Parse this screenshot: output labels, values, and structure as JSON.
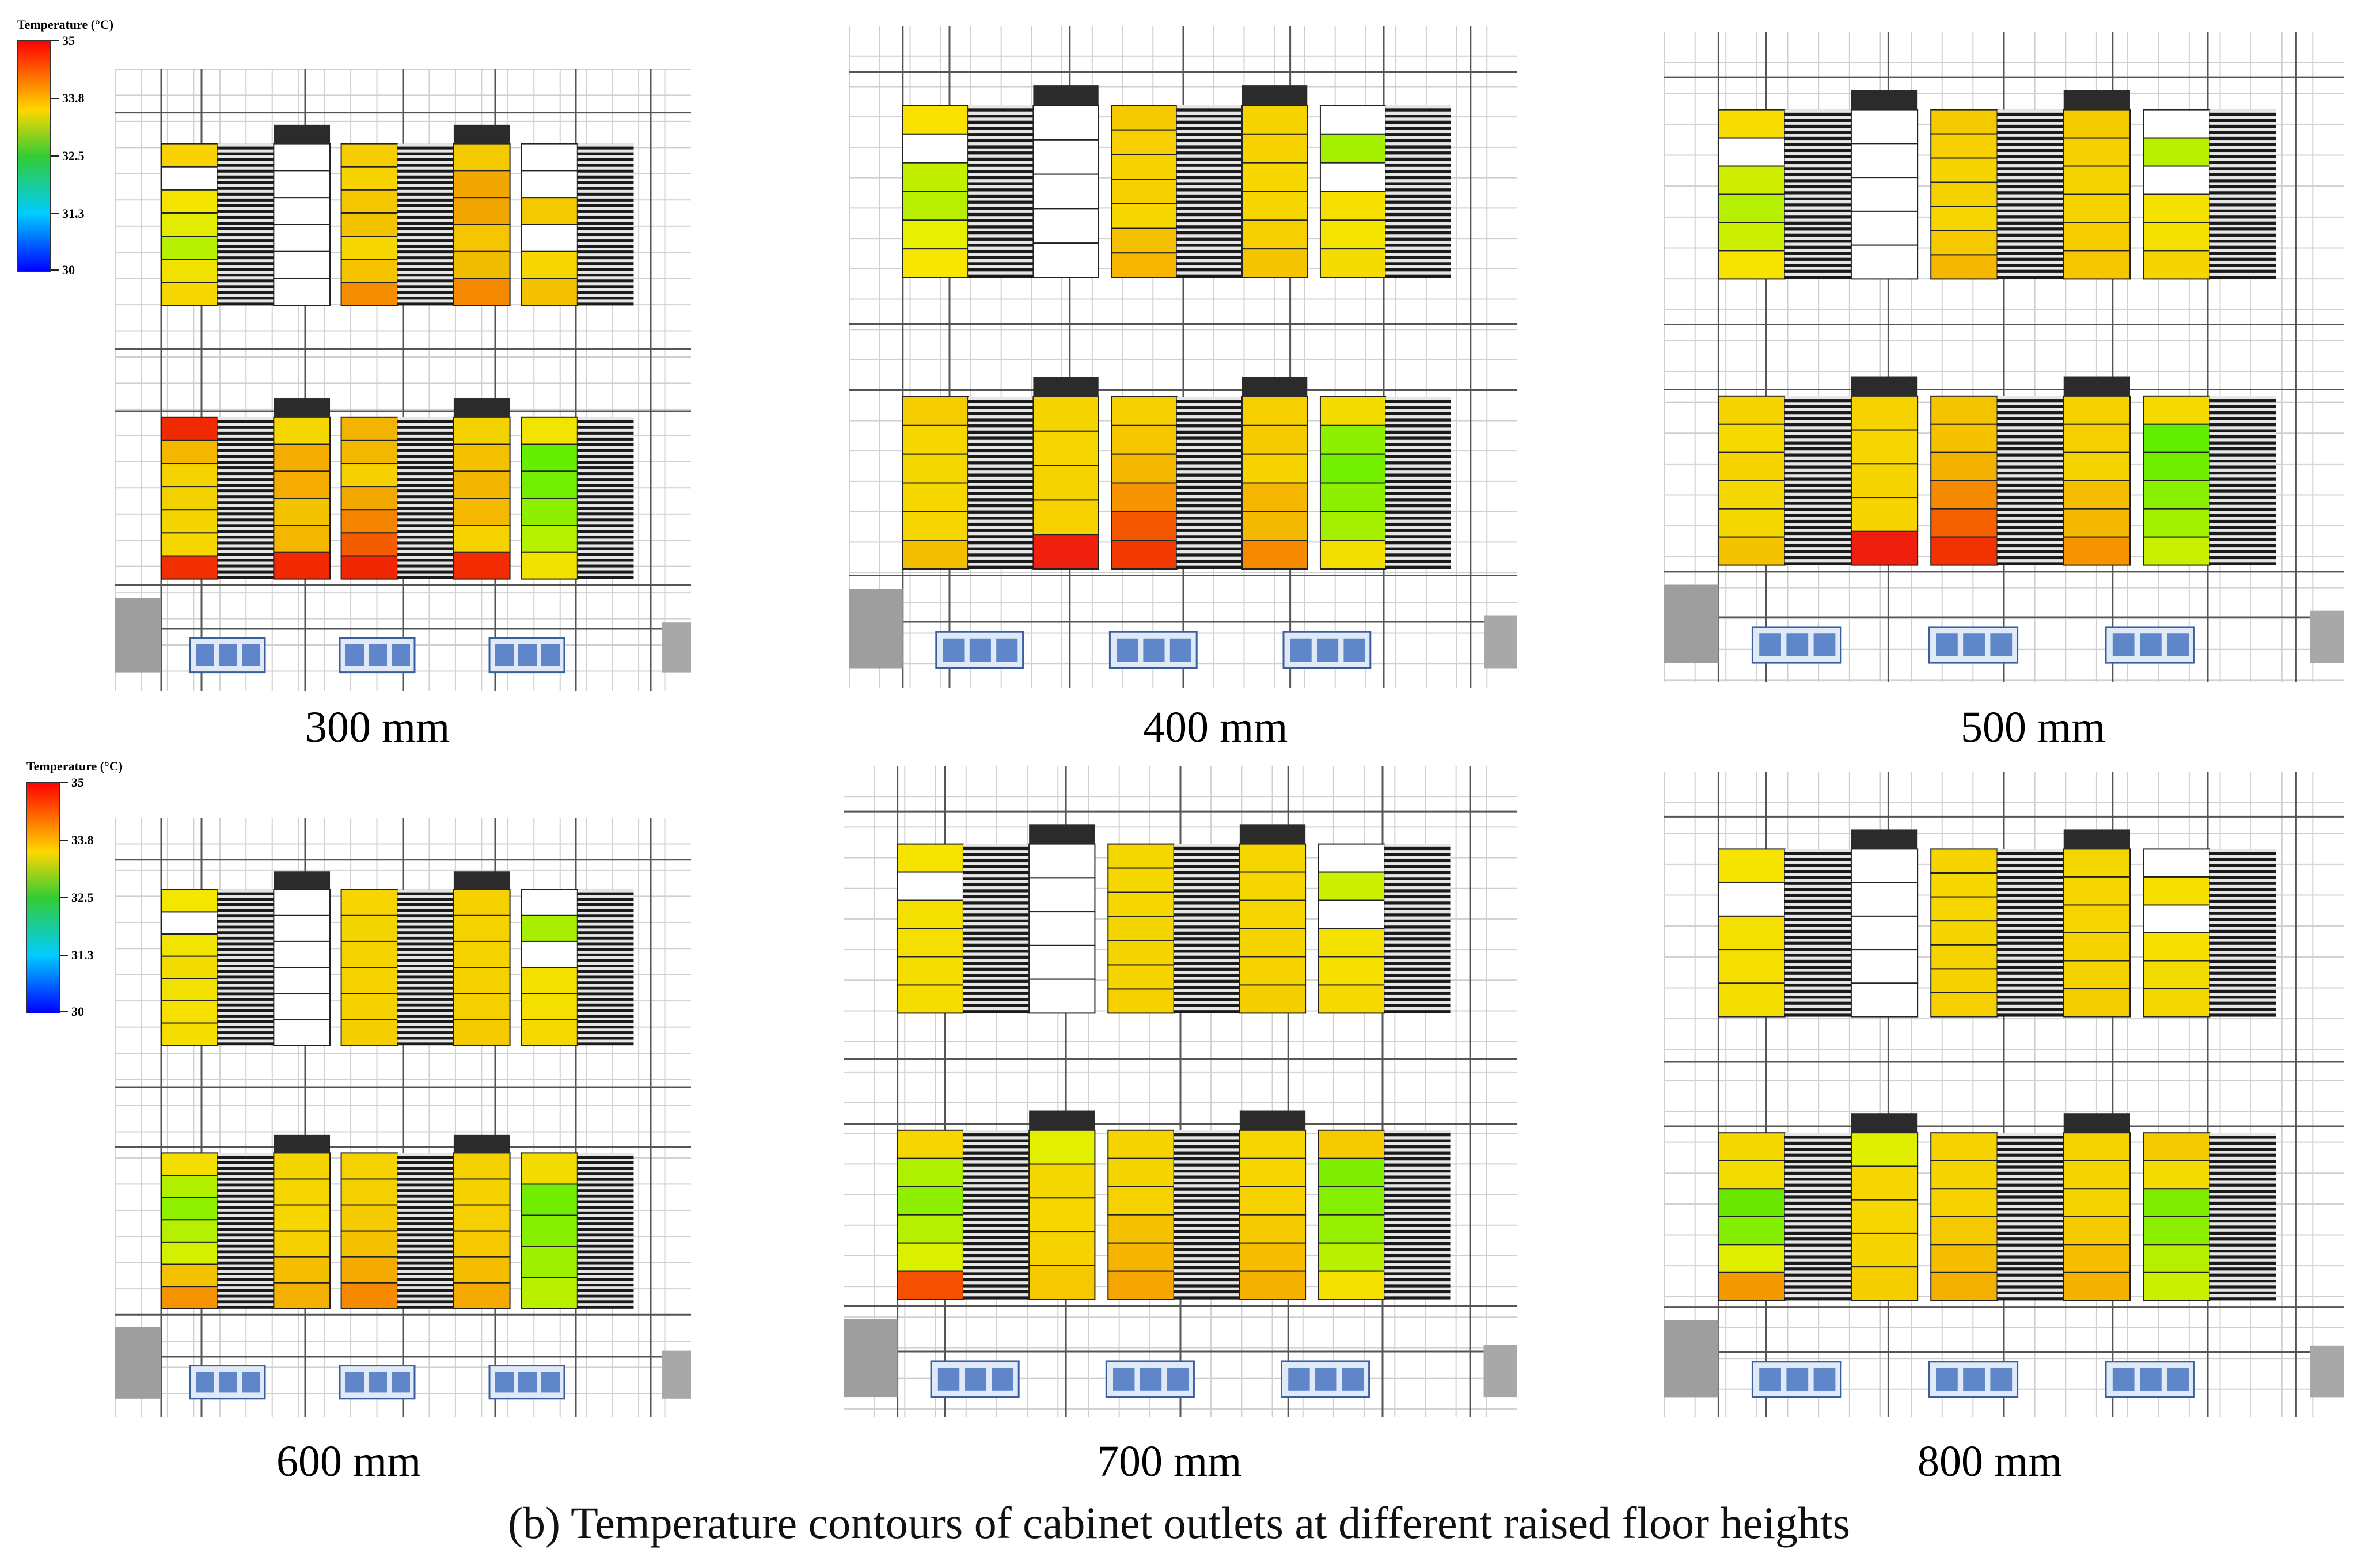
{
  "figure": {
    "caption": "(b) Temperature contours of cabinet outlets at different raised floor heights"
  },
  "legend": {
    "title": "Temperature (°C)",
    "ticks": [
      "35",
      "33.8",
      "32.5",
      "31.3",
      "30"
    ],
    "colors": {
      "high": "#ff0000",
      "mid_high": "#ffd700",
      "mid": "#33cc33",
      "mid_low": "#00ccff",
      "low": "#0000ff"
    }
  },
  "panels": [
    {
      "label": "300 mm",
      "rows": [
        [
          [
            "#f9d300",
            "#ffffff",
            "#f5e400",
            "#e3ec00",
            "#b7f000",
            "#f1e100",
            "#f6d700"
          ],
          [
            "#ffffff",
            "#ffffff",
            "#ffffff",
            "#ffffff",
            "#ffffff",
            "#ffffff"
          ],
          [
            "#f6cd00",
            "#f7d400",
            "#f4c700",
            "#f3c300",
            "#f7d700",
            "#f6c300",
            "#f58d00"
          ],
          [
            "#f3c900",
            "#f2a700",
            "#f1a500",
            "#f7c400",
            "#f2bd00",
            "#f58a00"
          ],
          [
            "#ffffff",
            "#ffffff",
            "#f4c900",
            "#ffffff",
            "#f6d800",
            "#f4c200"
          ]
        ],
        [
          [
            "#f02900",
            "#f5b700",
            "#f5d300",
            "#f3d000",
            "#f5d500",
            "#f6d800",
            "#f22f00"
          ],
          [
            "#f4d800",
            "#f4ad00",
            "#f6ab00",
            "#f4c300",
            "#f3b700",
            "#f22800"
          ],
          [
            "#f2b400",
            "#f3b800",
            "#f6d000",
            "#f3a800",
            "#f48400",
            "#f45c00",
            "#f02700"
          ],
          [
            "#f4d200",
            "#f4c000",
            "#f3b600",
            "#f4b900",
            "#f6d200",
            "#f22b00"
          ],
          [
            "#f3e300",
            "#66ee00",
            "#72ee00",
            "#8ef000",
            "#b6f200",
            "#f2e200"
          ]
        ]
      ]
    },
    {
      "label": "400 mm",
      "rows": [
        [
          [
            "#f9e100",
            "#ffffff",
            "#c2ef00",
            "#b8ef00",
            "#e6f000",
            "#f7e600"
          ],
          [
            "#ffffff",
            "#ffffff",
            "#ffffff",
            "#ffffff",
            "#ffffff"
          ],
          [
            "#f5c900",
            "#f5cf00",
            "#f5d200",
            "#f6d000",
            "#f6d700",
            "#f5c000",
            "#f5b500"
          ],
          [
            "#f5d300",
            "#f6d200",
            "#f6d700",
            "#f6d600",
            "#f5cf00",
            "#f5c400"
          ],
          [
            "#ffffff",
            "#a4f000",
            "#ffffff",
            "#f5e000",
            "#f5e400",
            "#f4db00"
          ]
        ],
        [
          [
            "#f5cc00",
            "#f6d700",
            "#f5d700",
            "#f6d700",
            "#f6d600",
            "#f3bd00"
          ],
          [
            "#f6d400",
            "#f6d600",
            "#f5d300",
            "#f6d300",
            "#f0200f"
          ],
          [
            "#f6cf00",
            "#f5c600",
            "#f4b700",
            "#f59400",
            "#f45700",
            "#f23a00"
          ],
          [
            "#f6cf00",
            "#f5cb00",
            "#f6d200",
            "#f4b600",
            "#f3b900",
            "#f58a00"
          ],
          [
            "#f3dd00",
            "#8ef000",
            "#72f000",
            "#8cf000",
            "#a4f000",
            "#f2df00"
          ]
        ]
      ]
    },
    {
      "label": "500 mm",
      "rows": [
        [
          [
            "#f7dc00",
            "#ffffff",
            "#d0ef00",
            "#b4f000",
            "#ccf100",
            "#f6e300"
          ],
          [
            "#ffffff",
            "#ffffff",
            "#ffffff",
            "#ffffff",
            "#ffffff"
          ],
          [
            "#f5c900",
            "#f6d000",
            "#f6d400",
            "#f6d100",
            "#f6d600",
            "#f5c900",
            "#f5b700"
          ],
          [
            "#f5cb00",
            "#f6d000",
            "#f6d400",
            "#f6d200",
            "#f6ce00",
            "#f5c600"
          ],
          [
            "#ffffff",
            "#b8f000",
            "#ffffff",
            "#f5e100",
            "#f4e000",
            "#f5d500"
          ]
        ],
        [
          [
            "#f5d300",
            "#f5da00",
            "#f6d400",
            "#f5d600",
            "#f5d800",
            "#f4c300"
          ],
          [
            "#f6d300",
            "#f5d600",
            "#f5d400",
            "#f6d400",
            "#ef1f10"
          ],
          [
            "#f5c400",
            "#f6c200",
            "#f4b200",
            "#f58900",
            "#f45f00",
            "#f23200"
          ],
          [
            "#f5d100",
            "#f5cf00",
            "#f5d300",
            "#f5be00",
            "#f4b600",
            "#f59300"
          ],
          [
            "#f4da00",
            "#62ee00",
            "#70ee00",
            "#88f000",
            "#a0f000",
            "#c8f000"
          ]
        ]
      ]
    },
    {
      "label": "600 mm",
      "rows": [
        [
          [
            "#f5e600",
            "#ffffff",
            "#f1e400",
            "#f3dd00",
            "#f2e100",
            "#f5e000",
            "#f4de00"
          ],
          [
            "#ffffff",
            "#ffffff",
            "#ffffff",
            "#ffffff",
            "#ffffff",
            "#ffffff"
          ],
          [
            "#f6d500",
            "#f5d500",
            "#f5d300",
            "#f5d200",
            "#f5d100",
            "#f5ce00"
          ],
          [
            "#f5d100",
            "#f5d300",
            "#f5d300",
            "#f5d100",
            "#f5d000",
            "#f5cb00"
          ],
          [
            "#ffffff",
            "#a8ee00",
            "#ffffff",
            "#f2e000",
            "#f4df00",
            "#f4da00"
          ]
        ],
        [
          [
            "#f4dd00",
            "#b2f000",
            "#8ff000",
            "#b5f000",
            "#d2f000",
            "#f5c100",
            "#f49200"
          ],
          [
            "#f5d500",
            "#f5d600",
            "#f6d600",
            "#f5d000",
            "#f5bf00",
            "#f4af00"
          ],
          [
            "#f5d200",
            "#f5d000",
            "#f5cb00",
            "#f5c200",
            "#f4aa00",
            "#f58a00"
          ],
          [
            "#f5d000",
            "#f5d100",
            "#f5cf00",
            "#f5c800",
            "#f5bd00",
            "#f4aa00"
          ],
          [
            "#f3dd00",
            "#72ec00",
            "#86ef00",
            "#9cf000",
            "#b8f000"
          ]
        ]
      ]
    },
    {
      "label": "700 mm",
      "rows": [
        [
          [
            "#f5e300",
            "#ffffff",
            "#f4e000",
            "#f4df00",
            "#f4de00",
            "#f5dd00"
          ],
          [
            "#ffffff",
            "#ffffff",
            "#ffffff",
            "#ffffff",
            "#ffffff"
          ],
          [
            "#f5d700",
            "#f6d800",
            "#f6d700",
            "#f5d500",
            "#f5d500",
            "#f5d400",
            "#f5d100"
          ],
          [
            "#f5d600",
            "#f6d600",
            "#f6d600",
            "#f5d400",
            "#f5d200",
            "#f5ce00"
          ],
          [
            "#ffffff",
            "#ccf000",
            "#ffffff",
            "#f5e100",
            "#f4df00",
            "#f4da00"
          ]
        ],
        [
          [
            "#f5d600",
            "#aef000",
            "#8ef000",
            "#b6f000",
            "#dcf000",
            "#f45000"
          ],
          [
            "#e2f000",
            "#f5d700",
            "#f6d700",
            "#f5d200",
            "#f5c800"
          ],
          [
            "#f5d400",
            "#f5d500",
            "#f5d200",
            "#f5c200",
            "#f4b400",
            "#f5a600"
          ],
          [
            "#f5d600",
            "#f6d500",
            "#f5d200",
            "#f5ca00",
            "#f5bc00",
            "#f4b100"
          ],
          [
            "#f5cb00",
            "#7eed00",
            "#84ef00",
            "#96f000",
            "#b8f000",
            "#f3df00"
          ]
        ]
      ]
    },
    {
      "label": "800 mm",
      "rows": [
        [
          [
            "#f6e300",
            "#ffffff",
            "#f4e000",
            "#f4df00",
            "#f4de00"
          ],
          [
            "#ffffff",
            "#ffffff",
            "#ffffff",
            "#ffffff",
            "#ffffff"
          ],
          [
            "#f5d400",
            "#f6d800",
            "#f6d700",
            "#f5d500",
            "#f5d300",
            "#f5d100",
            "#f5cf00"
          ],
          [
            "#f5d600",
            "#f6d600",
            "#f6d500",
            "#f5d400",
            "#f5d100",
            "#f5ce00"
          ],
          [
            "#ffffff",
            "#f5e000",
            "#ffffff",
            "#f4df00",
            "#f4dc00",
            "#f4d700"
          ]
        ],
        [
          [
            "#f5d800",
            "#f3dc00",
            "#6ae700",
            "#82ee00",
            "#e0ee00",
            "#f49800"
          ],
          [
            "#e0ef00",
            "#f5d600",
            "#f6d700",
            "#f6d400",
            "#f5ce00"
          ],
          [
            "#f5d200",
            "#f5d400",
            "#f5d200",
            "#f5c900",
            "#f5bd00",
            "#f4b000"
          ],
          [
            "#f5d400",
            "#f5d500",
            "#f5d300",
            "#f5cb00",
            "#f5bf00",
            "#f4b100"
          ],
          [
            "#f4c900",
            "#f4dc00",
            "#7eec00",
            "#8cef00",
            "#b6f000",
            "#c8f000"
          ]
        ]
      ]
    }
  ]
}
